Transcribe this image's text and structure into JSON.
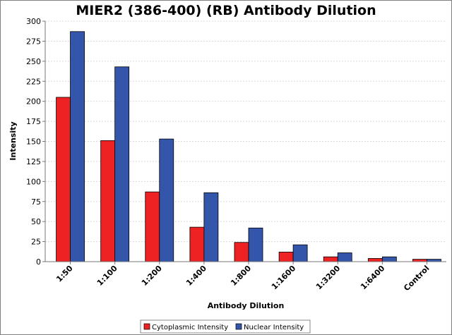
{
  "chart_data": {
    "type": "bar",
    "title": "MIER2 (386-400) (RB) Antibody Dilution",
    "xlabel": "Antibody Dilution",
    "ylabel": "Intensity",
    "categories": [
      "1:50",
      "1:100",
      "1:200",
      "1:400",
      "1:800",
      "1:1600",
      "1:3200",
      "1:6400",
      "Control"
    ],
    "series": [
      {
        "name": "Cytoplasmic Intensity",
        "color": "#ee2222",
        "values": [
          205,
          151,
          87,
          43,
          24,
          12,
          6,
          4,
          3
        ]
      },
      {
        "name": "Nuclear Intensity",
        "color": "#3355aa",
        "values": [
          287,
          243,
          153,
          86,
          42,
          21,
          11,
          6,
          3
        ]
      }
    ],
    "ylim": [
      0,
      300
    ],
    "yticks": [
      "0",
      "25",
      "50",
      "75",
      "100",
      "125",
      "150",
      "175",
      "200",
      "225",
      "250",
      "275",
      "300"
    ],
    "grid": true,
    "legend_position": "bottom"
  }
}
